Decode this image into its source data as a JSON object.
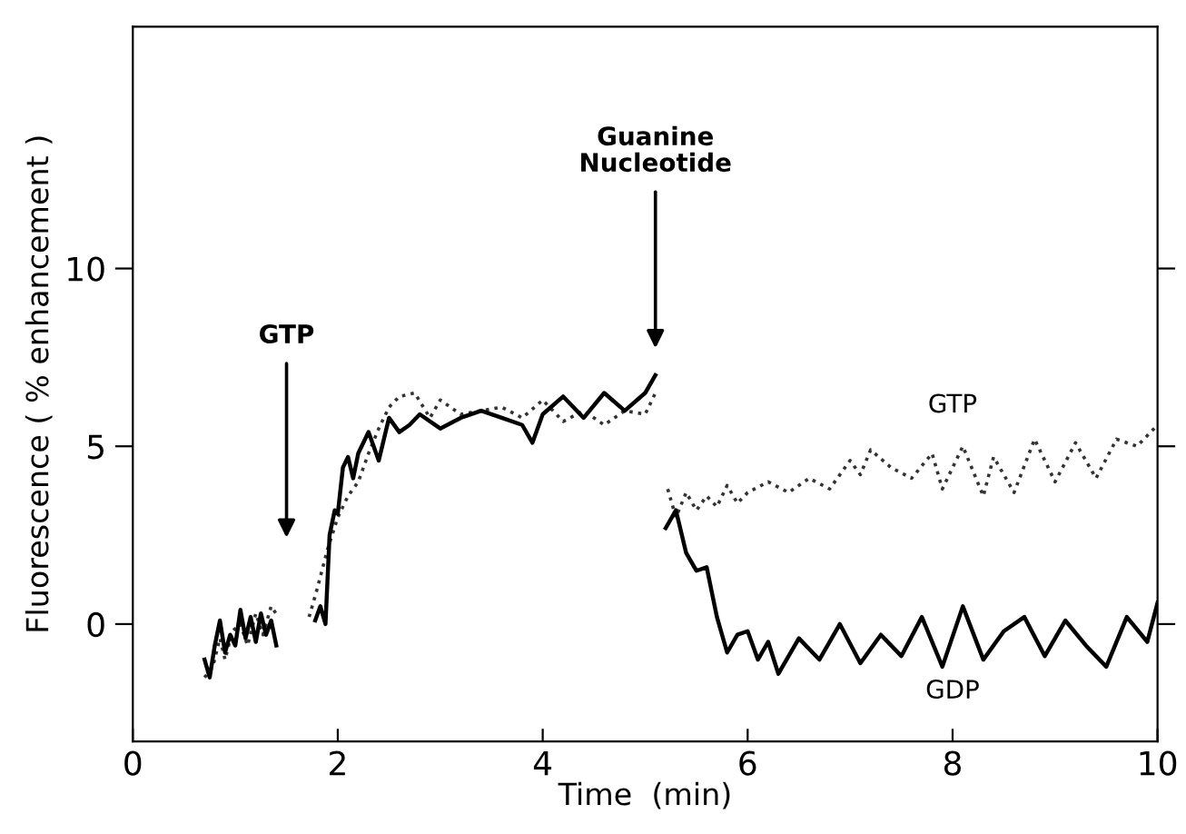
{
  "chart_data": {
    "type": "line",
    "xlabel": "Time  (min)",
    "ylabel": "Fluorescence ( % enhancement )",
    "xlim": [
      0,
      10
    ],
    "ylim": [
      -3.3,
      16.8
    ],
    "xticks": [
      0,
      2,
      4,
      6,
      8,
      10
    ],
    "yticks": [
      0,
      5,
      10
    ],
    "grid": false,
    "legend": false,
    "annotations": [
      "GTP",
      "Guanine\nNucleotide"
    ],
    "series": [
      {
        "name": "GTP",
        "color": "#333333",
        "line_style": "dotted",
        "x": [
          0.7,
          0.78,
          0.85,
          0.9,
          0.97,
          1.05,
          1.12,
          1.2,
          1.27,
          1.35,
          1.42,
          1.5,
          1.72,
          1.8,
          1.9,
          2.0,
          2.1,
          2.2,
          2.3,
          2.4,
          2.5,
          2.6,
          2.75,
          2.9,
          3.0,
          3.2,
          3.4,
          3.6,
          3.8,
          4.0,
          4.2,
          4.4,
          4.6,
          4.8,
          5.0,
          5.1,
          5.15,
          5.22,
          5.3,
          5.4,
          5.5,
          5.6,
          5.7,
          5.8,
          5.9,
          6.0,
          6.2,
          6.4,
          6.6,
          6.8,
          7.0,
          7.1,
          7.2,
          7.4,
          7.6,
          7.8,
          7.9,
          8.1,
          8.3,
          8.4,
          8.6,
          8.8,
          9.0,
          9.2,
          9.4,
          9.6,
          9.8,
          10.0
        ],
        "values": [
          -1.5,
          -1.2,
          -0.4,
          -1.0,
          -0.2,
          0.0,
          -0.6,
          0.3,
          -0.3,
          0.5,
          0.2,
          null,
          0.2,
          1.0,
          2.1,
          3.0,
          3.6,
          4.0,
          4.8,
          5.5,
          6.1,
          6.4,
          6.5,
          5.8,
          6.3,
          5.9,
          6.0,
          6.1,
          5.8,
          6.3,
          5.7,
          6.0,
          5.6,
          6.0,
          5.9,
          6.5,
          null,
          3.8,
          3.0,
          3.7,
          3.2,
          3.6,
          3.3,
          3.9,
          3.4,
          3.7,
          4.0,
          3.7,
          4.1,
          3.8,
          4.6,
          4.2,
          4.9,
          4.4,
          4.1,
          4.8,
          3.8,
          5.0,
          3.6,
          4.7,
          3.7,
          5.2,
          4.0,
          5.1,
          4.1,
          5.2,
          5.0,
          5.6
        ]
      },
      {
        "name": "GDP",
        "color": "#000000",
        "line_style": "solid",
        "x": [
          0.7,
          0.75,
          0.8,
          0.85,
          0.9,
          0.95,
          1.0,
          1.05,
          1.1,
          1.15,
          1.2,
          1.25,
          1.3,
          1.35,
          1.4,
          1.5,
          1.78,
          1.83,
          1.88,
          1.92,
          1.97,
          2.0,
          2.05,
          2.1,
          2.15,
          2.2,
          2.3,
          2.4,
          2.5,
          2.6,
          2.7,
          2.8,
          3.0,
          3.2,
          3.4,
          3.6,
          3.8,
          3.9,
          4.0,
          4.2,
          4.4,
          4.6,
          4.8,
          5.0,
          5.1,
          5.15,
          5.2,
          5.3,
          5.4,
          5.5,
          5.6,
          5.7,
          5.8,
          5.9,
          6.0,
          6.1,
          6.2,
          6.3,
          6.5,
          6.7,
          6.9,
          7.1,
          7.3,
          7.5,
          7.7,
          7.9,
          8.1,
          8.3,
          8.5,
          8.7,
          8.9,
          9.1,
          9.3,
          9.5,
          9.7,
          9.9,
          10.0
        ],
        "values": [
          -1.0,
          -1.5,
          -0.6,
          0.1,
          -0.8,
          -0.3,
          -0.6,
          0.4,
          -0.4,
          0.2,
          -0.5,
          0.3,
          -0.3,
          0.1,
          -0.6,
          null,
          0.1,
          0.5,
          0.0,
          2.5,
          3.2,
          3.1,
          4.4,
          4.7,
          4.1,
          4.8,
          5.4,
          4.6,
          5.8,
          5.4,
          5.6,
          5.9,
          5.5,
          5.8,
          6.0,
          5.8,
          5.6,
          5.1,
          5.9,
          6.4,
          5.8,
          6.5,
          6.0,
          6.5,
          7.0,
          null,
          2.7,
          3.2,
          2.0,
          1.5,
          1.6,
          0.2,
          -0.8,
          -0.3,
          -0.2,
          -1.0,
          -0.5,
          -1.4,
          -0.4,
          -1.0,
          0.0,
          -1.1,
          -0.3,
          -0.9,
          0.2,
          -1.2,
          0.5,
          -1.0,
          -0.2,
          0.2,
          -0.9,
          0.1,
          -0.6,
          -1.2,
          0.2,
          -0.5,
          0.6
        ]
      }
    ]
  }
}
